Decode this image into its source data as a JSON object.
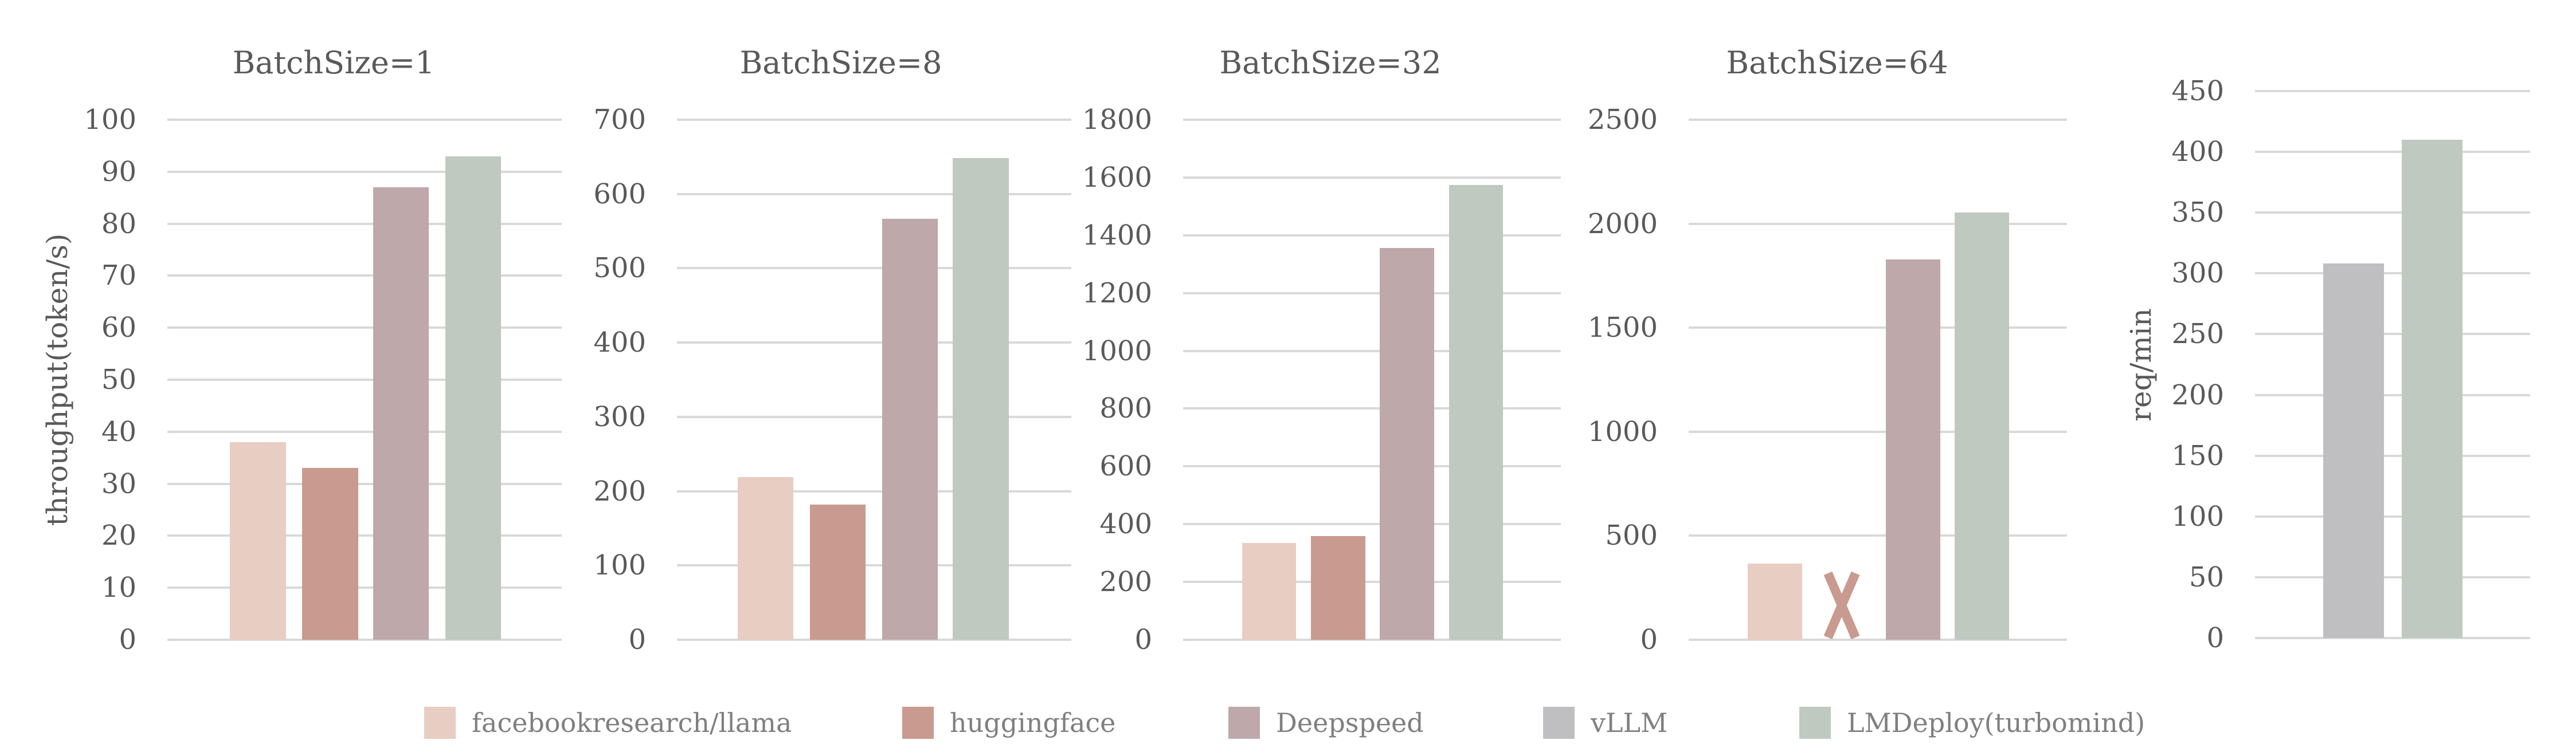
{
  "chart_data": {
    "type": "bar",
    "series_names": [
      "facebookresearch/llama",
      "huggingface",
      "Deepspeed",
      "vLLM",
      "LMDeploy(turbomind)"
    ],
    "colors": {
      "facebookresearch/llama": "#e8cdc3",
      "huggingface": "#c99a8f",
      "Deepspeed": "#bea8aa",
      "vLLM": "#bfbfc1",
      "LMDeploy(turbomind)": "#bfc9c0"
    },
    "grid_color": "#d9d9d9",
    "text_color": "#595959",
    "legend_position": "bottom",
    "grid": true,
    "panels": [
      {
        "title": "BatchSize=1",
        "ylabel": "throughput(token/s)",
        "ylim": [
          0,
          100
        ],
        "yticks": [
          0,
          10,
          20,
          30,
          40,
          50,
          60,
          70,
          80,
          90,
          100
        ],
        "series": [
          {
            "name": "facebookresearch/llama",
            "value": 38
          },
          {
            "name": "huggingface",
            "value": 33
          },
          {
            "name": "Deepspeed",
            "value": 87
          },
          {
            "name": "LMDeploy(turbomind)",
            "value": 93
          }
        ]
      },
      {
        "title": "BatchSize=8",
        "ylabel": "",
        "ylim": [
          0,
          700
        ],
        "yticks": [
          0,
          100,
          200,
          300,
          400,
          500,
          600,
          700
        ],
        "series": [
          {
            "name": "facebookresearch/llama",
            "value": 219
          },
          {
            "name": "huggingface",
            "value": 182
          },
          {
            "name": "Deepspeed",
            "value": 567
          },
          {
            "name": "LMDeploy(turbomind)",
            "value": 648
          }
        ]
      },
      {
        "title": "BatchSize=32",
        "ylabel": "",
        "ylim": [
          0,
          1800
        ],
        "yticks": [
          0,
          200,
          400,
          600,
          800,
          1000,
          1200,
          1400,
          1600,
          1800
        ],
        "series": [
          {
            "name": "facebookresearch/llama",
            "value": 335
          },
          {
            "name": "huggingface",
            "value": 359
          },
          {
            "name": "Deepspeed",
            "value": 1356
          },
          {
            "name": "LMDeploy(turbomind)",
            "value": 1575
          }
        ]
      },
      {
        "title": "BatchSize=64",
        "ylabel": "",
        "ylim": [
          0,
          2500
        ],
        "yticks": [
          0,
          500,
          1000,
          1500,
          2000,
          2500
        ],
        "series": [
          {
            "name": "facebookresearch/llama",
            "value": 365
          },
          {
            "name": "huggingface",
            "value": null,
            "annotation": "X (not available)"
          },
          {
            "name": "Deepspeed",
            "value": 1829
          },
          {
            "name": "LMDeploy(turbomind)",
            "value": 2054
          }
        ]
      },
      {
        "title": "",
        "ylabel": "req/min",
        "ylim": [
          0,
          450
        ],
        "yticks": [
          0,
          50,
          100,
          150,
          200,
          250,
          300,
          350,
          400,
          450
        ],
        "series": [
          {
            "name": "vLLM",
            "value": 308
          },
          {
            "name": "LMDeploy(turbomind)",
            "value": 410
          }
        ]
      }
    ]
  },
  "legend": {
    "items": [
      {
        "label": "facebookresearch/llama",
        "color": "#e8cdc3"
      },
      {
        "label": "huggingface",
        "color": "#c99a8f"
      },
      {
        "label": "Deepspeed",
        "color": "#bea8aa"
      },
      {
        "label": "vLLM",
        "color": "#bfbfc1"
      },
      {
        "label": "LMDeploy(turbomind)",
        "color": "#bfc9c0"
      }
    ]
  },
  "missing_marker": "X"
}
